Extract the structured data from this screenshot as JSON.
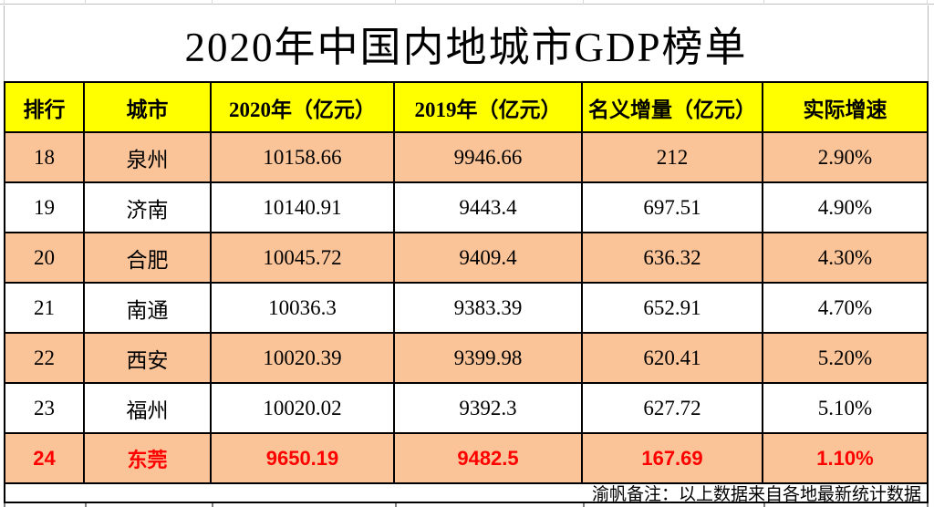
{
  "title": "2020年中国内地城市GDP榜单",
  "footnote": "渝帆备注：以上数据来自各地最新统计数据",
  "colors": {
    "header_fill": "#ffff00",
    "band_fill": "#fac498",
    "plain_fill": "#ffffff",
    "highlight_text": "#ff0000",
    "grid_border": "#000000"
  },
  "table": {
    "headers": [
      "排行",
      "城市",
      "2020年（亿元）",
      "2019年（亿元）",
      "名义增量（亿元）",
      "实际增速"
    ],
    "rows": [
      {
        "rank": "18",
        "city": "泉州",
        "gdp_2020": "10158.66",
        "gdp_2019": "9946.66",
        "nominal_increase": "212",
        "real_growth": "2.90%",
        "highlighted": false
      },
      {
        "rank": "19",
        "city": "济南",
        "gdp_2020": "10140.91",
        "gdp_2019": "9443.4",
        "nominal_increase": "697.51",
        "real_growth": "4.90%",
        "highlighted": false
      },
      {
        "rank": "20",
        "city": "合肥",
        "gdp_2020": "10045.72",
        "gdp_2019": "9409.4",
        "nominal_increase": "636.32",
        "real_growth": "4.30%",
        "highlighted": false
      },
      {
        "rank": "21",
        "city": "南通",
        "gdp_2020": "10036.3",
        "gdp_2019": "9383.39",
        "nominal_increase": "652.91",
        "real_growth": "4.70%",
        "highlighted": false
      },
      {
        "rank": "22",
        "city": "西安",
        "gdp_2020": "10020.39",
        "gdp_2019": "9399.98",
        "nominal_increase": "620.41",
        "real_growth": "5.20%",
        "highlighted": false
      },
      {
        "rank": "23",
        "city": "福州",
        "gdp_2020": "10020.02",
        "gdp_2019": "9392.3",
        "nominal_increase": "627.72",
        "real_growth": "5.10%",
        "highlighted": false
      },
      {
        "rank": "24",
        "city": "东莞",
        "gdp_2020": "9650.19",
        "gdp_2019": "9482.5",
        "nominal_increase": "167.69",
        "real_growth": "1.10%",
        "highlighted": true
      }
    ]
  },
  "chart_data": {
    "type": "table",
    "title": "2020年中国内地城市GDP榜单",
    "columns": [
      "排行",
      "城市",
      "2020年（亿元）",
      "2019年（亿元）",
      "名义增量（亿元）",
      "实际增速"
    ],
    "rows": [
      [
        18,
        "泉州",
        10158.66,
        9946.66,
        212,
        "2.90%"
      ],
      [
        19,
        "济南",
        10140.91,
        9443.4,
        697.51,
        "4.90%"
      ],
      [
        20,
        "合肥",
        10045.72,
        9409.4,
        636.32,
        "4.30%"
      ],
      [
        21,
        "南通",
        10036.3,
        9383.39,
        652.91,
        "4.70%"
      ],
      [
        22,
        "西安",
        10020.39,
        9399.98,
        620.41,
        "5.20%"
      ],
      [
        23,
        "福州",
        10020.02,
        9392.3,
        627.72,
        "5.10%"
      ],
      [
        24,
        "东莞",
        9650.19,
        9482.5,
        167.69,
        "1.10%"
      ]
    ],
    "notes": "渝帆备注：以上数据来自各地最新统计数据；排行24（东莞）整行以红色强调；奇数行（18/20/22/24）为橙色底纹，偶数行为白色底纹，表头为黄色底纹"
  }
}
